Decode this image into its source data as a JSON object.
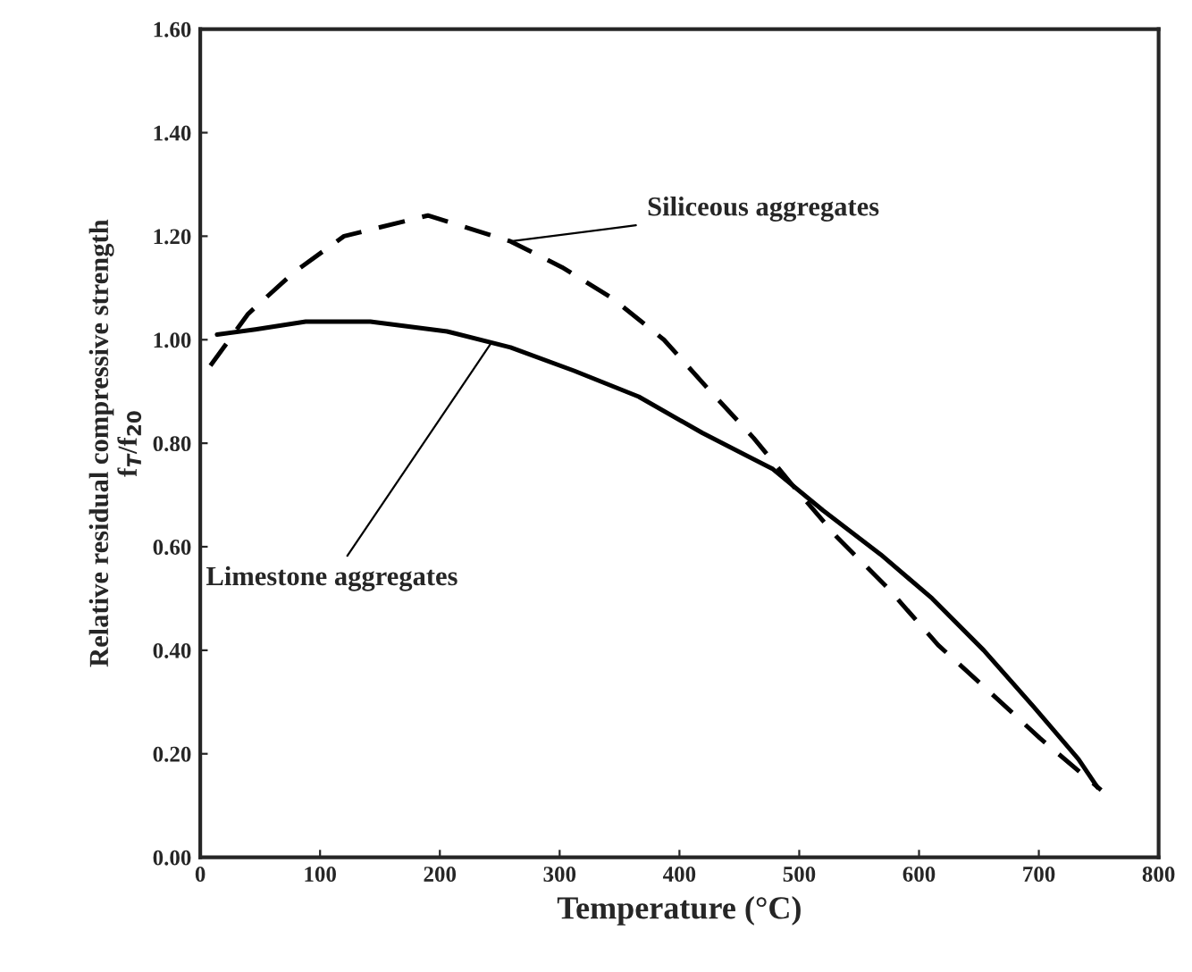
{
  "chart_data": {
    "type": "line",
    "xlabel": "Temperature (°C)",
    "ylabel": "Relative residual compressive strength\nf$_{T}$/f$_{20}$",
    "series": [
      {
        "color": "#000000",
        "line_style": "dashed",
        "x": [
          8.5,
          40,
          78,
          120,
          190,
          259,
          302,
          344,
          387,
          424,
          462,
          494,
          531,
          574,
          616,
          654,
          701,
          752
        ],
        "values": [
          0.95,
          1.05,
          1.13,
          1.2,
          1.24,
          1.19,
          1.14,
          1.08,
          1.0,
          0.905,
          0.81,
          0.72,
          0.62,
          0.52,
          0.41,
          0.33,
          0.23,
          0.13
        ]
      },
      {
        "color": "#000000",
        "line_style": "solid",
        "x": [
          14,
          46,
          88,
          142,
          206,
          259,
          312,
          366,
          419,
          478,
          520,
          568,
          611,
          654,
          696,
          733,
          749
        ],
        "values": [
          1.01,
          1.02,
          1.035,
          1.035,
          1.016,
          0.985,
          0.94,
          0.89,
          0.82,
          0.75,
          0.67,
          0.585,
          0.5,
          0.4,
          0.29,
          0.19,
          0.135
        ]
      }
    ],
    "annotations": [
      {
        "text": "Siliceous aggregates",
        "x": 259,
        "y": 1.19
      },
      {
        "text": "Limestone aggregates",
        "x": 243,
        "y": 0.994
      }
    ],
    "xlim": [
      0,
      800
    ],
    "xticks": [
      0,
      100,
      200,
      300,
      400,
      500,
      600,
      700,
      800
    ],
    "ylim": [
      0,
      1.6
    ],
    "yticks": [
      {
        "value": 0,
        "label": "0.00"
      },
      {
        "value": 0.2,
        "label": "0.20"
      },
      {
        "value": 0.4,
        "label": "0.40"
      },
      {
        "value": 0.6,
        "label": "0.60"
      },
      {
        "value": 0.8,
        "label": "0.80"
      },
      {
        "value": 1.0,
        "label": "1.00"
      },
      {
        "value": 1.2,
        "label": "1.20"
      },
      {
        "value": 1.4,
        "label": "1.40"
      },
      {
        "value": 1.6,
        "label": "1.60"
      }
    ],
    "grid": false,
    "legend": false,
    "marker": "none"
  }
}
